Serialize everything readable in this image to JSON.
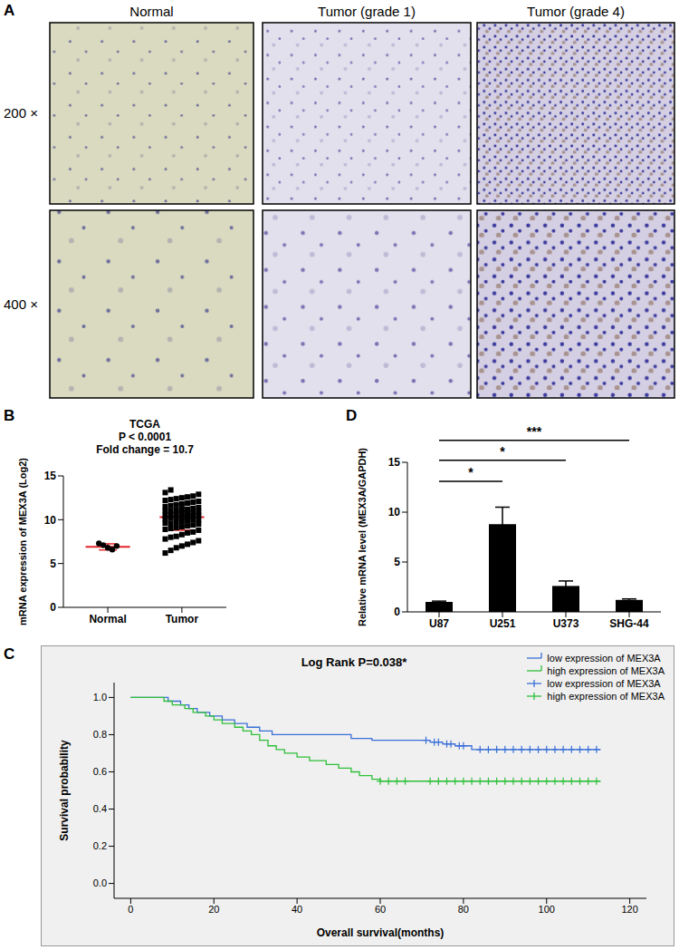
{
  "panel_A": {
    "label": "A",
    "columns": [
      "Normal",
      "Tumor (grade 1)",
      "Tumor (grade 4)"
    ],
    "rows": [
      "200 ×",
      "400 ×"
    ]
  },
  "chart_data": [
    {
      "panel": "B",
      "type": "scatter",
      "title": "TCGA",
      "annotations": [
        "P < 0.0001",
        "Fold change = 10.7"
      ],
      "y_label": "mRNA expression of MEX3A (Log2)",
      "ylim": [
        0,
        15
      ],
      "yticks": [
        0,
        5,
        10,
        15
      ],
      "series": [
        {
          "name": "Normal",
          "color": "#000000",
          "marker": "circle",
          "values": [
            7.3,
            7.1,
            6.8,
            6.6,
            7.0
          ],
          "mean": 6.9,
          "sd": 0.35
        },
        {
          "name": "Tumor",
          "color": "#000000",
          "marker": "square",
          "values": [
            6.2,
            6.5,
            6.8,
            7.0,
            7.2,
            7.4,
            7.6,
            7.8,
            8.0,
            8.1,
            8.3,
            8.5,
            8.6,
            8.8,
            8.9,
            9.0,
            9.1,
            9.2,
            9.3,
            9.4,
            9.5,
            9.6,
            9.6,
            9.7,
            9.8,
            9.9,
            10.0,
            10.0,
            10.1,
            10.2,
            10.2,
            10.3,
            10.4,
            10.4,
            10.5,
            10.5,
            10.6,
            10.7,
            10.7,
            10.8,
            10.8,
            10.9,
            11.0,
            11.0,
            11.1,
            11.2,
            11.2,
            11.3,
            11.4,
            11.5,
            11.6,
            11.7,
            11.8,
            11.9,
            12.0,
            12.1,
            12.2,
            12.3,
            12.4,
            12.5,
            12.6,
            12.7,
            12.9,
            13.1,
            13.4
          ],
          "mean": 10.3,
          "sd": 1.5
        }
      ]
    },
    {
      "panel": "C",
      "type": "line",
      "title": "Log Rank P=0.038*",
      "x_label": "Overall survival(months)",
      "y_label": "Survival probability",
      "xlim": [
        -4,
        124
      ],
      "xticks": [
        0,
        20,
        40,
        60,
        80,
        100,
        120
      ],
      "ylim": [
        -0.08,
        1.08
      ],
      "yticks": [
        {
          "value": 0,
          "label": "0.0"
        },
        {
          "value": 0.2,
          "label": "0.2"
        },
        {
          "value": 0.4,
          "label": "0.4"
        },
        {
          "value": 0.6,
          "label": "0.6"
        },
        {
          "value": 0.8,
          "label": "0.8"
        },
        {
          "value": 1,
          "label": "1.0"
        }
      ],
      "legend": "top right",
      "line_style": "step",
      "series": [
        {
          "name": "low expression of MEX3A",
          "color": "#3a6fd8",
          "x": [
            0,
            9,
            12,
            14,
            16,
            19,
            22,
            25,
            28,
            31,
            34,
            53,
            58,
            72,
            75,
            78,
            82,
            113
          ],
          "values": [
            1,
            0.98,
            0.96,
            0.94,
            0.92,
            0.9,
            0.88,
            0.86,
            0.84,
            0.82,
            0.8,
            0.78,
            0.77,
            0.76,
            0.75,
            0.74,
            0.72,
            0.72
          ],
          "censored": {
            "x": [
              71,
              73,
              74,
              76,
              77,
              79,
              80,
              84,
              86,
              88,
              90,
              92,
              94,
              96,
              98,
              100,
              102,
              104,
              106,
              108,
              110,
              112
            ],
            "values": [
              0.77,
              0.76,
              0.76,
              0.75,
              0.75,
              0.74,
              0.74,
              0.72,
              0.72,
              0.72,
              0.72,
              0.72,
              0.72,
              0.72,
              0.72,
              0.72,
              0.72,
              0.72,
              0.72,
              0.72,
              0.72,
              0.72
            ]
          }
        },
        {
          "name": "high expression of MEX3A",
          "color": "#2fbf3a",
          "x": [
            0,
            8,
            10,
            13,
            15,
            18,
            20,
            22,
            25,
            27,
            29,
            31,
            33,
            35,
            37,
            40,
            43,
            47,
            50,
            53,
            55,
            58,
            60,
            113
          ],
          "values": [
            1,
            0.98,
            0.96,
            0.94,
            0.92,
            0.9,
            0.88,
            0.86,
            0.84,
            0.82,
            0.8,
            0.77,
            0.74,
            0.72,
            0.7,
            0.68,
            0.66,
            0.64,
            0.62,
            0.6,
            0.58,
            0.56,
            0.55,
            0.55
          ],
          "censored": {
            "x": [
              60,
              62,
              64,
              66,
              72,
              74,
              76,
              78,
              80,
              82,
              84,
              86,
              88,
              90,
              92,
              94,
              96,
              98,
              100,
              102,
              104,
              106,
              108,
              110,
              112
            ],
            "values": [
              0.55,
              0.55,
              0.55,
              0.55,
              0.55,
              0.55,
              0.55,
              0.55,
              0.55,
              0.55,
              0.55,
              0.55,
              0.55,
              0.55,
              0.55,
              0.55,
              0.55,
              0.55,
              0.55,
              0.55,
              0.55,
              0.55,
              0.55,
              0.55,
              0.55
            ]
          }
        }
      ]
    },
    {
      "panel": "D",
      "type": "bar",
      "y_label": "Relative mRNA level (MEX3A/GAPDH)",
      "categories": [
        "U87",
        "U251",
        "U373",
        "SHG-44"
      ],
      "values": [
        1.0,
        8.8,
        2.6,
        1.2
      ],
      "errors": [
        0.08,
        1.7,
        0.5,
        0.1
      ],
      "color": "#000000",
      "ylim": [
        0,
        15
      ],
      "yticks": [
        0,
        5,
        10,
        15
      ],
      "comparisons": [
        {
          "from": "U87",
          "to": "U251",
          "label": "*",
          "y": 13.1
        },
        {
          "from": "U87",
          "to": "U373",
          "label": "*",
          "y": 15.2
        },
        {
          "from": "U87",
          "to": "SHG-44",
          "label": "***",
          "y": 17.2
        }
      ]
    }
  ]
}
